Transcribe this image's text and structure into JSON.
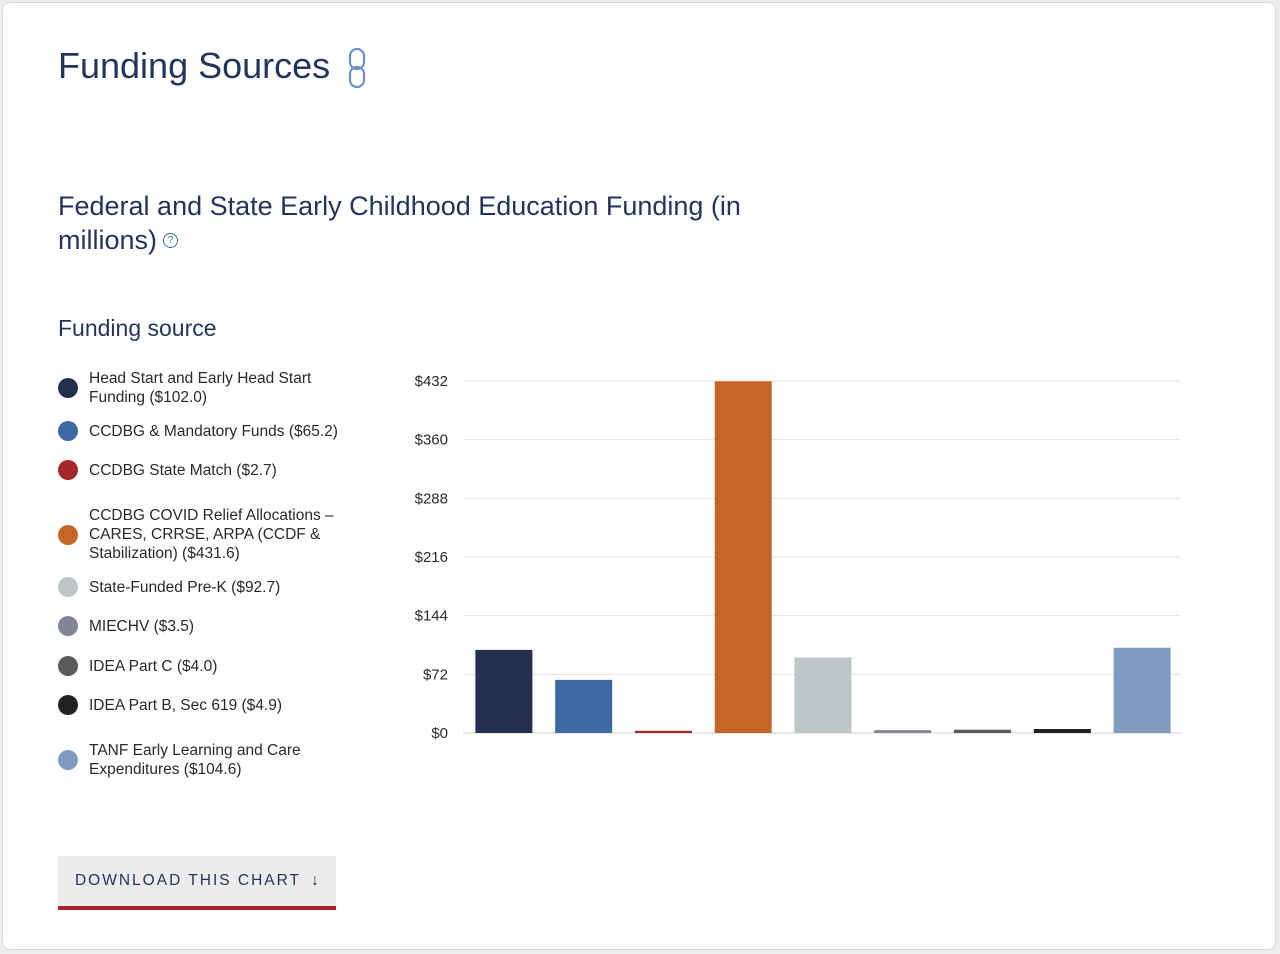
{
  "page": {
    "title": "Funding Sources"
  },
  "chart_header": {
    "title": "Federal and State Early Childhood Education Funding (in millions)"
  },
  "legend": {
    "title": "Funding source"
  },
  "download": {
    "label": "DOWNLOAD THIS CHART",
    "icon": "↓"
  },
  "icons": {
    "title_link": "link-icon",
    "help": "help-icon",
    "download": "download-arrow-icon"
  },
  "chart_data": {
    "type": "bar",
    "title": "Federal and State Early Childhood Education Funding (in millions)",
    "xlabel": "",
    "ylabel": "",
    "ylim": [
      0,
      432
    ],
    "yticks": [
      0,
      72,
      144,
      216,
      288,
      360,
      432
    ],
    "ytick_labels": [
      "$0",
      "$72",
      "$144",
      "$216",
      "$288",
      "$360",
      "$432"
    ],
    "grid": true,
    "legend_position": "left",
    "categories": [
      "Head Start and Early Head Start Funding ($102.0)",
      "CCDBG & Mandatory Funds ($65.2)",
      "CCDBG State Match ($2.7)",
      "CCDBG COVID Relief Allocations – CARES, CRRSE, ARPA (CCDF & Stabilization) ($431.6)",
      "State-Funded Pre-K ($92.7)",
      "MIECHV ($3.5)",
      "IDEA Part C ($4.0)",
      "IDEA Part B, Sec 619 ($4.9)",
      "TANF Early Learning and Care Expenditures ($104.6)"
    ],
    "values": [
      102.0,
      65.2,
      2.7,
      431.6,
      92.7,
      3.5,
      4.0,
      4.9,
      104.6
    ],
    "colors": [
      "#23304f",
      "#3e6aa3",
      "#a3262c",
      "#c26527",
      "#bec6c8",
      "#838597",
      "#5b5b5b",
      "#222222",
      "#809bc0"
    ]
  }
}
